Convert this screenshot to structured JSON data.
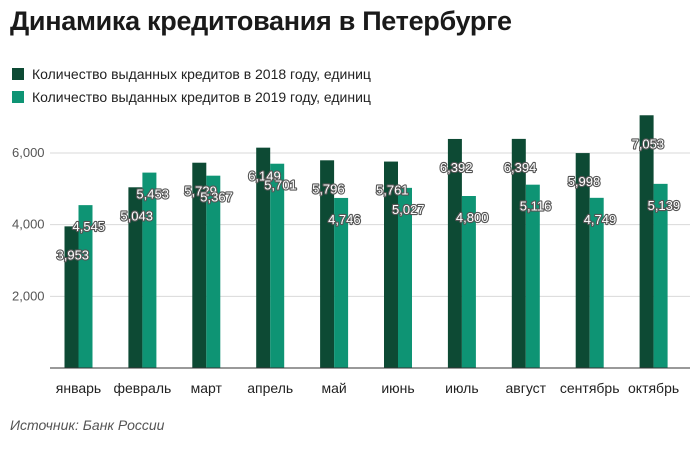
{
  "title": "Динамика кредитования в Петербурге",
  "source": "Источник: Банк России",
  "chart_data": {
    "type": "bar",
    "categories": [
      "январь",
      "февраль",
      "март",
      "апрель",
      "май",
      "июнь",
      "июль",
      "август",
      "сентябрь",
      "октябрь"
    ],
    "series": [
      {
        "name": "Количество выданных кредитов в 2018 году, единиц",
        "color": "#0d4a34",
        "values": [
          3953,
          5043,
          5729,
          6149,
          5796,
          5761,
          6392,
          6394,
          5998,
          7053
        ],
        "labels": [
          "3,953",
          "5,043",
          "5,729",
          "6,149",
          "5,796",
          "5,761",
          "6,392",
          "6,394",
          "5,998",
          "7,053"
        ]
      },
      {
        "name": "Количество выданных кредитов в 2019 году, единиц",
        "color": "#0e9474",
        "values": [
          4545,
          5453,
          5367,
          5701,
          4746,
          5027,
          4800,
          5116,
          4749,
          5139
        ],
        "labels": [
          "4,545",
          "5,453",
          "5,367",
          "5,701",
          "4,746",
          "5,027",
          "4,800",
          "5,116",
          "4,749",
          "5,139"
        ]
      }
    ],
    "yticks": [
      2000,
      4000,
      6000
    ],
    "ytick_labels": [
      "2,000",
      "4,000",
      "6,000"
    ],
    "ylim": [
      0,
      7200
    ],
    "xlabel": "",
    "ylabel": "",
    "grid": true,
    "legend_position": "top-left"
  }
}
